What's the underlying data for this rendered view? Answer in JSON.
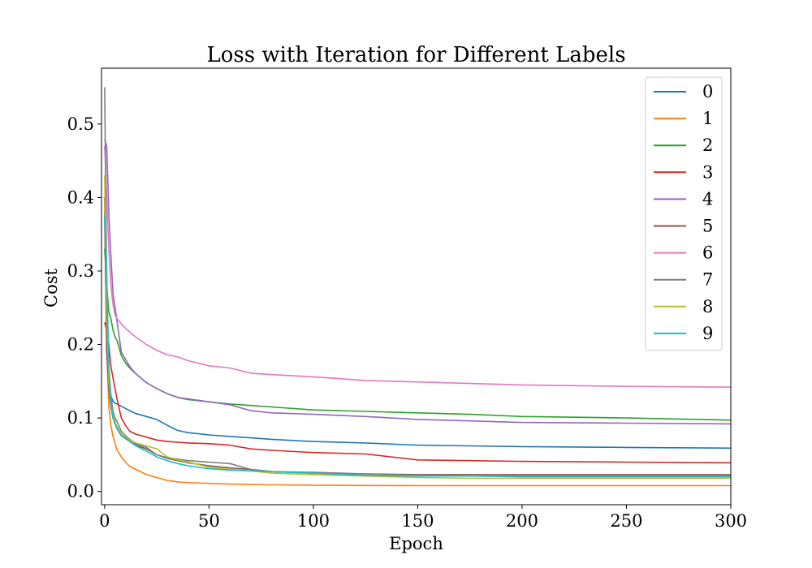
{
  "chart_data": {
    "type": "line",
    "title": "Loss with Iteration for Different Labels",
    "xlabel": "Epoch",
    "ylabel": "Cost",
    "xlim": [
      -1.5,
      300
    ],
    "ylim": [
      -0.018,
      0.576
    ],
    "xticks": [
      0,
      50,
      100,
      150,
      200,
      250,
      300
    ],
    "yticks": [
      0.0,
      0.1,
      0.2,
      0.3,
      0.4,
      0.5
    ],
    "xtick_labels": [
      "0",
      "50",
      "100",
      "150",
      "200",
      "250",
      "300"
    ],
    "ytick_labels": [
      "0.0",
      "0.1",
      "0.2",
      "0.3",
      "0.4",
      "0.5"
    ],
    "grid": false,
    "legend_position": "top-right",
    "x": [
      0,
      1,
      2,
      3,
      4,
      5,
      6,
      8,
      10,
      12,
      15,
      20,
      25,
      30,
      35,
      40,
      50,
      60,
      70,
      80,
      100,
      125,
      150,
      175,
      200,
      250,
      300
    ],
    "series": [
      {
        "name": "0",
        "color": "#1f77b4",
        "values": [
          0.37,
          0.21,
          0.16,
          0.13,
          0.123,
          0.12,
          0.119,
          0.116,
          0.113,
          0.11,
          0.106,
          0.102,
          0.098,
          0.09,
          0.083,
          0.08,
          0.077,
          0.075,
          0.073,
          0.071,
          0.068,
          0.066,
          0.063,
          0.062,
          0.061,
          0.06,
          0.059
        ]
      },
      {
        "name": "1",
        "color": "#ff7f0e",
        "values": [
          0.38,
          0.2,
          0.115,
          0.09,
          0.075,
          0.065,
          0.056,
          0.047,
          0.04,
          0.034,
          0.03,
          0.023,
          0.019,
          0.015,
          0.013,
          0.012,
          0.011,
          0.01,
          0.0095,
          0.009,
          0.0085,
          0.0082,
          0.008,
          0.008,
          0.008,
          0.008,
          0.008
        ]
      },
      {
        "name": "2",
        "color": "#2ca02c",
        "values": [
          0.33,
          0.28,
          0.245,
          0.235,
          0.22,
          0.21,
          0.205,
          0.185,
          0.175,
          0.168,
          0.16,
          0.148,
          0.14,
          0.133,
          0.128,
          0.125,
          0.122,
          0.119,
          0.117,
          0.115,
          0.111,
          0.109,
          0.107,
          0.105,
          0.102,
          0.1,
          0.097
        ]
      },
      {
        "name": "3",
        "color": "#d62728",
        "values": [
          0.23,
          0.22,
          0.2,
          0.17,
          0.155,
          0.14,
          0.125,
          0.1,
          0.09,
          0.082,
          0.078,
          0.074,
          0.07,
          0.068,
          0.067,
          0.066,
          0.065,
          0.063,
          0.058,
          0.056,
          0.053,
          0.051,
          0.043,
          0.042,
          0.041,
          0.04,
          0.039
        ]
      },
      {
        "name": "4",
        "color": "#9467bd",
        "values": [
          0.48,
          0.47,
          0.38,
          0.32,
          0.27,
          0.25,
          0.23,
          0.19,
          0.18,
          0.17,
          0.16,
          0.148,
          0.14,
          0.133,
          0.128,
          0.126,
          0.122,
          0.118,
          0.11,
          0.107,
          0.105,
          0.102,
          0.098,
          0.096,
          0.094,
          0.093,
          0.092
        ]
      },
      {
        "name": "5",
        "color": "#8c564b",
        "values": [
          0.4,
          0.19,
          0.14,
          0.115,
          0.1,
          0.092,
          0.085,
          0.076,
          0.072,
          0.068,
          0.063,
          0.058,
          0.05,
          0.045,
          0.042,
          0.039,
          0.035,
          0.032,
          0.03,
          0.027,
          0.025,
          0.024,
          0.023,
          0.023,
          0.023,
          0.023,
          0.023
        ]
      },
      {
        "name": "6",
        "color": "#e377c2",
        "values": [
          0.47,
          0.4,
          0.33,
          0.28,
          0.255,
          0.24,
          0.235,
          0.228,
          0.222,
          0.217,
          0.21,
          0.2,
          0.192,
          0.186,
          0.183,
          0.178,
          0.171,
          0.168,
          0.161,
          0.159,
          0.156,
          0.151,
          0.149,
          0.147,
          0.145,
          0.143,
          0.142
        ]
      },
      {
        "name": "7",
        "color": "#7f7f7f",
        "values": [
          0.55,
          0.28,
          0.17,
          0.13,
          0.11,
          0.1,
          0.095,
          0.082,
          0.076,
          0.071,
          0.065,
          0.06,
          0.05,
          0.046,
          0.044,
          0.042,
          0.04,
          0.038,
          0.03,
          0.027,
          0.026,
          0.024,
          0.022,
          0.021,
          0.021,
          0.021,
          0.021
        ]
      },
      {
        "name": "8",
        "color": "#bcbd22",
        "values": [
          0.43,
          0.25,
          0.15,
          0.12,
          0.105,
          0.095,
          0.088,
          0.08,
          0.075,
          0.07,
          0.066,
          0.062,
          0.058,
          0.047,
          0.043,
          0.04,
          0.033,
          0.03,
          0.028,
          0.025,
          0.023,
          0.021,
          0.019,
          0.018,
          0.018,
          0.018,
          0.018
        ]
      },
      {
        "name": "9",
        "color": "#17becf",
        "values": [
          0.375,
          0.3,
          0.17,
          0.12,
          0.1,
          0.092,
          0.085,
          0.077,
          0.073,
          0.068,
          0.062,
          0.055,
          0.047,
          0.042,
          0.038,
          0.035,
          0.031,
          0.029,
          0.028,
          0.027,
          0.025,
          0.022,
          0.021,
          0.021,
          0.02,
          0.02,
          0.02
        ]
      }
    ]
  }
}
